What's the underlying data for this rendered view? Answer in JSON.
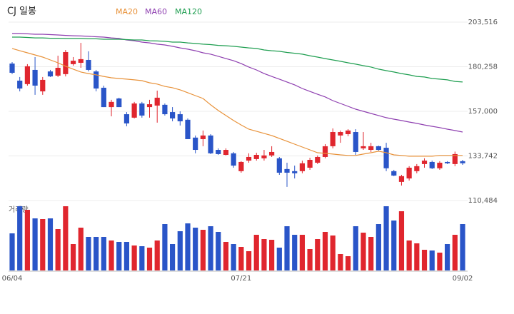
{
  "chart_data": {
    "type": "candlestick",
    "title": "CJ 일봉",
    "volume_label": "거래량",
    "up_color": "#e0262e",
    "down_color": "#2a55c8",
    "grid": true,
    "ylim": [
      110484,
      203516
    ],
    "yticks": [
      {
        "value": 203516,
        "label": "203,516"
      },
      {
        "value": 180258,
        "label": "180,258"
      },
      {
        "value": 157000,
        "label": "157,000"
      },
      {
        "value": 133742,
        "label": "133,742"
      },
      {
        "value": 110484,
        "label": "110,484"
      }
    ],
    "categories": [
      "06/04",
      null,
      null,
      null,
      null,
      null,
      null,
      null,
      null,
      null,
      null,
      null,
      null,
      null,
      null,
      null,
      null,
      null,
      null,
      null,
      null,
      null,
      null,
      null,
      null,
      null,
      null,
      null,
      null,
      null,
      "07/21",
      null,
      null,
      null,
      null,
      null,
      null,
      null,
      null,
      null,
      null,
      null,
      null,
      null,
      null,
      null,
      null,
      null,
      null,
      null,
      null,
      null,
      null,
      null,
      null,
      null,
      null,
      null,
      null,
      "09/02"
    ],
    "open": [
      181900,
      173000,
      171200,
      178600,
      167400,
      177800,
      175600,
      176400,
      181600,
      182300,
      183800,
      177800,
      169300,
      159200,
      163700,
      155500,
      153700,
      161100,
      159200,
      160000,
      160400,
      156600,
      155500,
      152600,
      143300,
      142500,
      144400,
      136900,
      134300,
      135100,
      125800,
      131300,
      132100,
      132500,
      134000,
      132500,
      126900,
      125800,
      125800,
      127600,
      130200,
      133200,
      138800,
      144400,
      145100,
      146200,
      137700,
      136900,
      138800,
      138000,
      125800,
      120200,
      122000,
      125800,
      129500,
      130600,
      127300,
      130600,
      129500,
      131000
    ],
    "high": [
      182700,
      174900,
      181600,
      185300,
      174900,
      178600,
      186000,
      189000,
      185300,
      192700,
      188300,
      178600,
      170400,
      163000,
      164100,
      156600,
      161900,
      161900,
      163000,
      167800,
      161100,
      159200,
      157000,
      153300,
      144400,
      147000,
      145100,
      137700,
      137700,
      135800,
      131000,
      135100,
      135400,
      136900,
      138800,
      133200,
      130200,
      128700,
      131300,
      132800,
      134000,
      139900,
      148100,
      147000,
      147700,
      147700,
      146200,
      140600,
      139100,
      140600,
      126500,
      123900,
      128400,
      129500,
      132500,
      131300,
      131000,
      131000,
      136000,
      131700
    ],
    "low": [
      176400,
      167400,
      170400,
      165600,
      165600,
      174900,
      174900,
      175200,
      180800,
      179700,
      177800,
      167400,
      159200,
      154400,
      159200,
      149200,
      153300,
      153700,
      153700,
      151100,
      154800,
      151800,
      149600,
      142500,
      135100,
      138800,
      134700,
      134300,
      134000,
      127600,
      125000,
      130200,
      131300,
      131300,
      133200,
      123900,
      117600,
      122000,
      124700,
      126500,
      129500,
      132500,
      137700,
      140600,
      144000,
      134300,
      136900,
      135800,
      136500,
      125800,
      123200,
      118300,
      120900,
      124700,
      127600,
      126900,
      126500,
      129500,
      128400,
      129100
    ],
    "close": [
      177100,
      168900,
      180500,
      170400,
      173400,
      175200,
      179700,
      187900,
      183400,
      184200,
      178600,
      168900,
      159200,
      161900,
      159200,
      150700,
      161100,
      154800,
      160700,
      164100,
      155500,
      153300,
      151800,
      142500,
      136900,
      144400,
      135100,
      134700,
      136900,
      128700,
      130600,
      133200,
      134300,
      134000,
      135800,
      125000,
      125000,
      124700,
      129900,
      131700,
      133200,
      138800,
      146200,
      146200,
      147000,
      135800,
      138800,
      138800,
      136900,
      127300,
      123500,
      123200,
      127600,
      128400,
      131300,
      127300,
      130200,
      129900,
      134700,
      129900
    ],
    "volume": [
      52,
      90,
      85,
      73,
      72,
      73,
      58,
      90,
      37,
      60,
      47,
      47,
      47,
      42,
      40,
      40,
      35,
      34,
      32,
      42,
      65,
      37,
      55,
      66,
      60,
      57,
      62,
      54,
      40,
      37,
      33,
      27,
      50,
      44,
      43,
      32,
      62,
      50,
      50,
      30,
      44,
      54,
      49,
      23,
      20,
      62,
      53,
      47,
      65,
      90,
      70,
      83,
      42,
      38,
      29,
      28,
      25,
      37,
      50,
      65
    ],
    "series": [
      {
        "name": "MA20",
        "color": "#e8923a",
        "values": [
          189800,
          188600,
          187500,
          186400,
          185300,
          183800,
          182300,
          180500,
          179000,
          177500,
          176700,
          176000,
          175200,
          174500,
          174100,
          173800,
          173400,
          173000,
          171900,
          171200,
          170000,
          169300,
          168200,
          166700,
          165200,
          163700,
          160400,
          157400,
          154800,
          152200,
          149900,
          147700,
          146600,
          145500,
          144400,
          142900,
          141400,
          139900,
          138400,
          136900,
          135400,
          135100,
          134700,
          134300,
          134000,
          134000,
          134700,
          135400,
          136200,
          135400,
          134300,
          134000,
          133600,
          133600,
          133600,
          133600,
          134000,
          134000,
          134000,
          134000
        ]
      },
      {
        "name": "MA60",
        "color": "#8e3fb0",
        "values": [
          197600,
          197600,
          197400,
          197200,
          197200,
          197000,
          196800,
          196600,
          196400,
          196300,
          196100,
          195900,
          195700,
          195300,
          195000,
          194200,
          193800,
          193100,
          192700,
          192000,
          191600,
          190900,
          190100,
          189400,
          188600,
          187500,
          186800,
          185700,
          184500,
          183400,
          181900,
          180100,
          178600,
          176700,
          175200,
          173800,
          172300,
          170800,
          168900,
          167400,
          165900,
          164500,
          162600,
          161100,
          159600,
          158100,
          157000,
          155900,
          154800,
          153700,
          152900,
          152200,
          151400,
          150700,
          149900,
          149200,
          148500,
          147700,
          147000,
          146200
        ]
      },
      {
        "name": "MA120",
        "color": "#1e9e50",
        "values": [
          195700,
          195700,
          195500,
          195300,
          195300,
          195100,
          195100,
          195000,
          195000,
          195000,
          194800,
          194800,
          194600,
          194600,
          194600,
          194400,
          194200,
          194200,
          193800,
          193700,
          193500,
          193100,
          193100,
          192700,
          192400,
          192000,
          191800,
          191400,
          191200,
          190900,
          190500,
          190100,
          189800,
          189000,
          188600,
          188300,
          187700,
          187300,
          186800,
          186000,
          185300,
          184500,
          183800,
          183100,
          182300,
          181600,
          180800,
          180100,
          179000,
          178200,
          177500,
          176700,
          176000,
          175200,
          174900,
          174100,
          173800,
          173400,
          172600,
          172300
        ]
      }
    ]
  }
}
